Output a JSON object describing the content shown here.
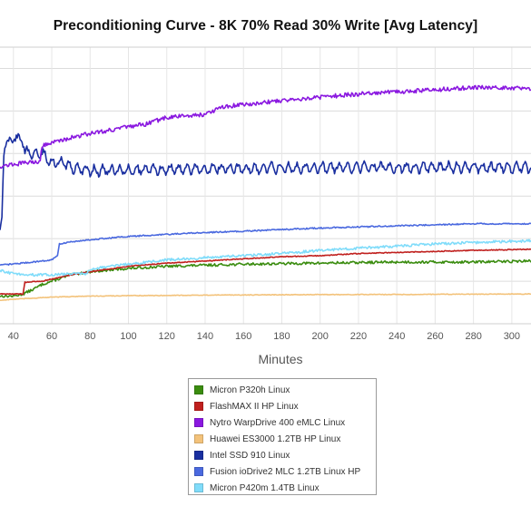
{
  "chart_data": {
    "type": "line",
    "title": "Preconditioning Curve - 8K 70% Read 30% Write [Avg Latency]",
    "xlabel": "Minutes",
    "ylabel": "",
    "xlim": [
      33,
      310
    ],
    "ylim": [
      0,
      13
    ],
    "x_ticks": [
      40,
      60,
      80,
      100,
      120,
      140,
      160,
      180,
      200,
      220,
      240,
      260,
      280,
      300
    ],
    "grid": true,
    "legend_position": "bottom-center",
    "series": [
      {
        "name": "Micron P320h Linux",
        "color": "#3a8c0f",
        "points": [
          [
            33,
            1.3
          ],
          [
            40,
            1.3
          ],
          [
            45,
            1.4
          ],
          [
            50,
            1.6
          ],
          [
            55,
            1.85
          ],
          [
            60,
            2.0
          ],
          [
            70,
            2.3
          ],
          [
            80,
            2.45
          ],
          [
            100,
            2.6
          ],
          [
            120,
            2.7
          ],
          [
            140,
            2.75
          ],
          [
            160,
            2.8
          ],
          [
            200,
            2.85
          ],
          [
            240,
            2.9
          ],
          [
            280,
            2.9
          ],
          [
            310,
            2.95
          ]
        ],
        "noise": 0.06
      },
      {
        "name": "FlashMAX II HP Linux",
        "color": "#c0201e",
        "points": [
          [
            33,
            1.4
          ],
          [
            45,
            1.4
          ],
          [
            46,
            1.95
          ],
          [
            55,
            2.0
          ],
          [
            60,
            2.1
          ],
          [
            70,
            2.3
          ],
          [
            80,
            2.45
          ],
          [
            100,
            2.7
          ],
          [
            120,
            2.85
          ],
          [
            140,
            2.95
          ],
          [
            160,
            3.05
          ],
          [
            180,
            3.15
          ],
          [
            200,
            3.2
          ],
          [
            220,
            3.3
          ],
          [
            240,
            3.35
          ],
          [
            260,
            3.4
          ],
          [
            280,
            3.45
          ],
          [
            310,
            3.5
          ]
        ],
        "noise": 0.02
      },
      {
        "name": "Nytro WarpDrive 400 eMLC Linux",
        "color": "#8a18e0",
        "points": [
          [
            33,
            7.4
          ],
          [
            40,
            7.5
          ],
          [
            50,
            7.6
          ],
          [
            54,
            7.65
          ],
          [
            55,
            8.4
          ],
          [
            60,
            8.5
          ],
          [
            70,
            8.75
          ],
          [
            80,
            8.95
          ],
          [
            100,
            9.25
          ],
          [
            110,
            9.4
          ],
          [
            120,
            9.7
          ],
          [
            140,
            9.85
          ],
          [
            150,
            10.2
          ],
          [
            160,
            10.3
          ],
          [
            180,
            10.5
          ],
          [
            200,
            10.65
          ],
          [
            220,
            10.8
          ],
          [
            240,
            10.9
          ],
          [
            260,
            11.0
          ],
          [
            280,
            11.1
          ],
          [
            300,
            11.1
          ],
          [
            310,
            11.05
          ]
        ],
        "noise": 0.1
      },
      {
        "name": "Huawei ES3000 1.2TB HP Linux",
        "color": "#f3c27a",
        "points": [
          [
            33,
            1.1
          ],
          [
            40,
            1.15
          ],
          [
            50,
            1.2
          ],
          [
            60,
            1.25
          ],
          [
            80,
            1.3
          ],
          [
            100,
            1.32
          ],
          [
            150,
            1.35
          ],
          [
            200,
            1.37
          ],
          [
            250,
            1.38
          ],
          [
            310,
            1.4
          ]
        ],
        "noise": 0.015
      },
      {
        "name": "Intel SSD 910 Linux",
        "color": "#1a2fa0",
        "points": [
          [
            33,
            4.4
          ],
          [
            34,
            5.0
          ],
          [
            35,
            8.0
          ],
          [
            37,
            8.7
          ],
          [
            40,
            8.6
          ],
          [
            43,
            8.9
          ],
          [
            46,
            8.1
          ],
          [
            50,
            7.95
          ],
          [
            55,
            8.0
          ],
          [
            60,
            7.55
          ],
          [
            65,
            7.6
          ],
          [
            70,
            7.35
          ],
          [
            80,
            7.2
          ],
          [
            90,
            7.2
          ],
          [
            110,
            7.25
          ],
          [
            150,
            7.3
          ],
          [
            200,
            7.35
          ],
          [
            250,
            7.35
          ],
          [
            310,
            7.35
          ]
        ],
        "noise": 0.12,
        "wave": 0.2
      },
      {
        "name": "Fusion ioDrive2 MLC 1.2TB Linux HP",
        "color": "#4a69df",
        "points": [
          [
            33,
            2.75
          ],
          [
            50,
            2.9
          ],
          [
            60,
            3.0
          ],
          [
            63,
            3.2
          ],
          [
            64,
            3.75
          ],
          [
            70,
            3.85
          ],
          [
            80,
            3.95
          ],
          [
            100,
            4.1
          ],
          [
            130,
            4.25
          ],
          [
            160,
            4.35
          ],
          [
            200,
            4.5
          ],
          [
            240,
            4.6
          ],
          [
            280,
            4.7
          ],
          [
            310,
            4.7
          ]
        ],
        "noise": 0.03
      },
      {
        "name": "Micron P420m 1.4TB Linux",
        "color": "#80dcfa",
        "points": [
          [
            33,
            2.5
          ],
          [
            40,
            2.35
          ],
          [
            50,
            2.3
          ],
          [
            60,
            2.3
          ],
          [
            70,
            2.35
          ],
          [
            78,
            2.35
          ],
          [
            80,
            2.55
          ],
          [
            90,
            2.7
          ],
          [
            100,
            2.8
          ],
          [
            120,
            3.0
          ],
          [
            150,
            3.15
          ],
          [
            180,
            3.3
          ],
          [
            200,
            3.45
          ],
          [
            230,
            3.6
          ],
          [
            260,
            3.75
          ],
          [
            290,
            3.85
          ],
          [
            310,
            3.9
          ]
        ],
        "noise": 0.06
      }
    ]
  }
}
